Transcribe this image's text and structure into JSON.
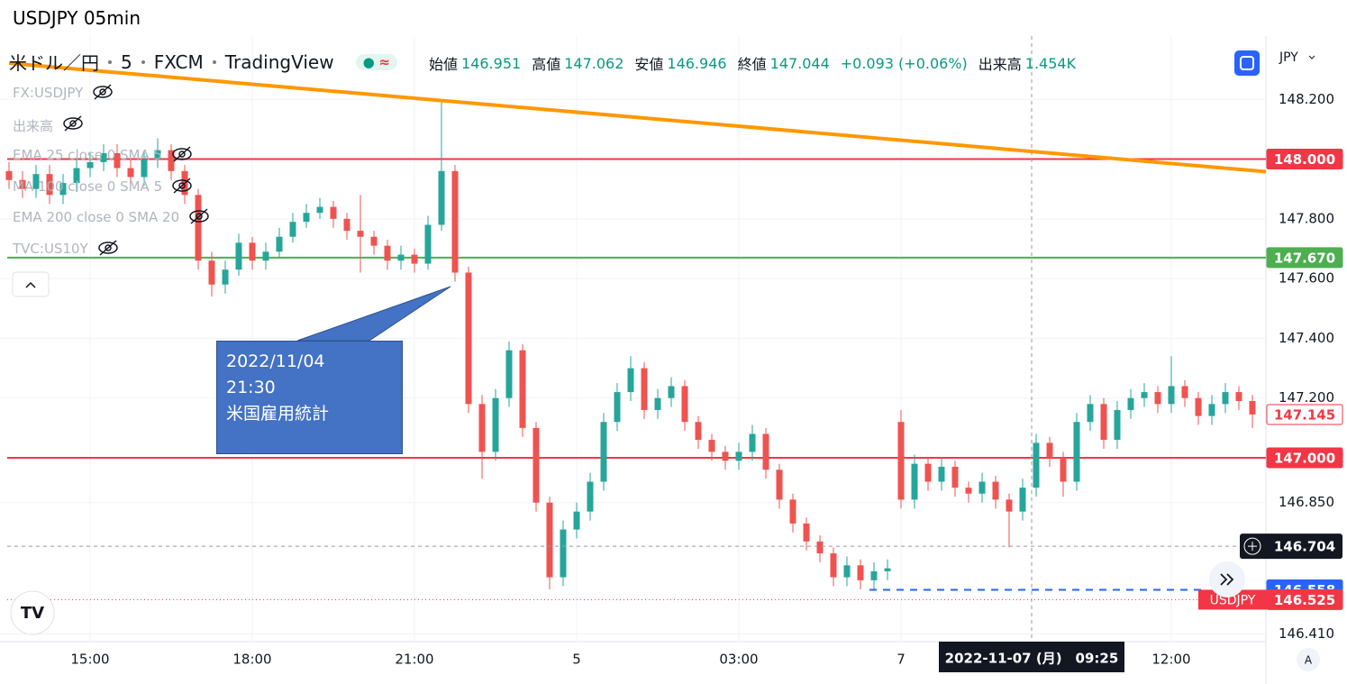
{
  "header": {
    "title": "USDJPY 05min"
  },
  "chart_data": {
    "type": "candlestick",
    "symbol_parts": [
      "米ドル／円",
      "5",
      "FXCM",
      "TradingView"
    ],
    "ohlc_legend": [
      {
        "label": "始値",
        "value": 146.951
      },
      {
        "label": "高値",
        "value": 147.062
      },
      {
        "label": "安値",
        "value": 146.946
      },
      {
        "label": "終値",
        "value": 147.044
      }
    ],
    "change": "+0.093 (+0.06%)",
    "volume_label": "出来高",
    "volume": "1.454K",
    "indicators": [
      "FX:USDJPY",
      "出来高",
      "EMA 25 close 0 SMA 5",
      "MA 100 close 0 SMA 5",
      "EMA 200 close 0 SMA 20",
      "TVC:US10Y"
    ],
    "currency": "JPY",
    "scale_button": "A",
    "annotation": [
      "2022/11/04",
      "21:30",
      "米国雇用統計"
    ],
    "x": [
      -18,
      -15,
      -12,
      -9,
      -6,
      -3,
      0,
      3,
      6,
      9,
      12,
      15,
      18,
      21,
      24,
      27,
      30,
      33,
      36,
      39,
      42,
      45,
      48,
      51,
      54,
      57,
      60,
      63,
      66,
      69,
      72,
      75,
      78,
      81,
      84,
      87,
      90,
      93,
      96,
      99,
      102,
      105,
      108,
      111,
      114,
      117,
      120,
      123,
      126,
      129,
      132,
      135,
      138,
      141,
      144,
      147,
      150,
      153,
      156,
      159,
      162,
      165,
      168,
      171,
      174,
      177,
      180,
      183,
      186,
      189,
      192,
      195,
      198,
      201,
      204,
      207,
      210,
      213,
      216,
      219,
      222,
      225,
      228,
      231,
      234,
      237,
      240,
      243,
      246,
      249,
      252,
      255,
      258
    ],
    "open": [
      147.96,
      147.93,
      147.9,
      147.95,
      147.88,
      147.92,
      147.97,
      147.99,
      148.02,
      147.97,
      147.94,
      148.0,
      148.03,
      147.96,
      147.88,
      147.66,
      147.58,
      147.63,
      147.72,
      147.66,
      147.69,
      147.74,
      147.79,
      147.82,
      147.84,
      147.8,
      147.76,
      147.74,
      147.71,
      147.66,
      147.68,
      147.65,
      147.78,
      147.96,
      147.62,
      147.18,
      147.02,
      147.2,
      147.36,
      147.1,
      146.85,
      146.6,
      146.76,
      146.82,
      146.92,
      147.12,
      147.22,
      147.3,
      147.16,
      147.2,
      147.24,
      147.12,
      147.06,
      147.02,
      146.99,
      147.02,
      147.08,
      146.96,
      146.86,
      146.78,
      146.72,
      146.68,
      146.6,
      146.64,
      146.59,
      146.62,
      147.12,
      146.86,
      146.98,
      146.92,
      146.97,
      146.9,
      146.88,
      146.92,
      146.86,
      146.82,
      146.9,
      147.05,
      147.0,
      146.92,
      147.12,
      147.18,
      147.06,
      147.16,
      147.2,
      147.22,
      147.18,
      147.24,
      147.2,
      147.14,
      147.18,
      147.22,
      147.19
    ],
    "high": [
      147.99,
      147.96,
      147.98,
      147.98,
      147.95,
      148.0,
      148.02,
      148.05,
      148.05,
      148.0,
      148.03,
      148.07,
      148.05,
      147.98,
      147.9,
      147.69,
      147.66,
      147.75,
      147.74,
      147.72,
      147.77,
      147.82,
      147.85,
      147.87,
      147.86,
      147.82,
      147.88,
      147.76,
      147.73,
      147.71,
      147.7,
      147.81,
      148.19,
      147.98,
      147.64,
      147.21,
      147.23,
      147.39,
      147.38,
      147.12,
      146.87,
      146.79,
      146.85,
      146.95,
      147.15,
      147.25,
      147.34,
      147.32,
      147.23,
      147.27,
      147.26,
      147.14,
      147.08,
      147.04,
      147.05,
      147.11,
      147.1,
      146.98,
      146.88,
      146.8,
      146.74,
      146.7,
      146.67,
      146.66,
      146.65,
      146.66,
      147.16,
      147.01,
      147.0,
      147.0,
      146.99,
      146.92,
      146.95,
      146.94,
      146.88,
      146.93,
      147.08,
      147.07,
      147.02,
      147.15,
      147.21,
      147.2,
      147.19,
      147.23,
      147.25,
      147.24,
      147.34,
      147.26,
      147.22,
      147.21,
      147.25,
      147.24,
      147.21
    ],
    "low": [
      147.9,
      147.87,
      147.87,
      147.85,
      147.85,
      147.89,
      147.94,
      147.96,
      147.94,
      147.91,
      147.91,
      147.97,
      147.93,
      147.85,
      147.63,
      147.54,
      147.55,
      147.61,
      147.63,
      147.63,
      147.67,
      147.72,
      147.77,
      147.8,
      147.77,
      147.73,
      147.62,
      147.68,
      147.63,
      147.63,
      147.62,
      147.63,
      147.76,
      147.59,
      147.15,
      146.93,
      146.99,
      147.17,
      147.07,
      146.82,
      146.56,
      146.57,
      146.73,
      146.79,
      146.89,
      147.09,
      147.19,
      147.13,
      147.13,
      147.17,
      147.09,
      147.03,
      146.99,
      146.96,
      146.96,
      146.99,
      146.93,
      146.83,
      146.75,
      146.69,
      146.65,
      146.57,
      146.57,
      146.56,
      146.56,
      146.59,
      146.83,
      146.83,
      146.89,
      146.89,
      146.87,
      146.85,
      146.85,
      146.83,
      146.7,
      146.79,
      146.87,
      146.97,
      146.87,
      146.89,
      147.09,
      147.03,
      147.03,
      147.13,
      147.17,
      147.15,
      147.15,
      147.17,
      147.11,
      147.11,
      147.15,
      147.16,
      147.1
    ],
    "close": [
      147.93,
      147.9,
      147.95,
      147.88,
      147.92,
      147.97,
      147.99,
      148.02,
      147.97,
      147.94,
      148.0,
      148.03,
      147.96,
      147.88,
      147.66,
      147.58,
      147.63,
      147.72,
      147.66,
      147.69,
      147.74,
      147.79,
      147.82,
      147.84,
      147.8,
      147.76,
      147.74,
      147.71,
      147.66,
      147.68,
      147.65,
      147.78,
      147.96,
      147.62,
      147.18,
      147.02,
      147.2,
      147.36,
      147.1,
      146.85,
      146.6,
      146.76,
      146.82,
      146.92,
      147.12,
      147.22,
      147.3,
      147.16,
      147.2,
      147.24,
      147.12,
      147.06,
      147.02,
      146.99,
      147.02,
      147.08,
      146.96,
      146.86,
      146.78,
      146.72,
      146.68,
      146.6,
      146.64,
      146.59,
      146.62,
      146.63,
      146.86,
      146.98,
      146.92,
      146.97,
      146.9,
      146.88,
      146.92,
      146.86,
      146.82,
      146.9,
      147.05,
      147.0,
      146.92,
      147.12,
      147.18,
      147.06,
      147.16,
      147.2,
      147.22,
      147.18,
      147.24,
      147.2,
      147.14,
      147.18,
      147.22,
      147.19,
      147.145
    ],
    "up_color": "#26a69a",
    "down_color": "#ef5350",
    "xlim": [
      -18,
      260
    ],
    "xticks": [
      {
        "value": 0,
        "label": "15:00"
      },
      {
        "value": 36,
        "label": "18:00"
      },
      {
        "value": 72,
        "label": "21:00"
      },
      {
        "value": 108,
        "label": "5"
      },
      {
        "value": 144,
        "label": "03:00"
      },
      {
        "value": 180,
        "label": "7"
      },
      {
        "value": 240,
        "label": "12:00"
      }
    ],
    "ylim": [
      146.383,
      148.412
    ],
    "yticks": [
      {
        "value": 148.2,
        "label": "148.200"
      },
      {
        "value": 147.8,
        "label": "147.800"
      },
      {
        "value": 147.6,
        "label": "147.600"
      },
      {
        "value": 147.4,
        "label": "147.400"
      },
      {
        "value": 147.2,
        "label": "147.200"
      },
      {
        "value": 146.85,
        "label": "146.850"
      },
      {
        "value": 146.41,
        "label": "146.410"
      }
    ],
    "grid": true,
    "hlines": [
      {
        "value": 148,
        "label": "148.000",
        "color": "#f23645"
      },
      {
        "value": 147.67,
        "label": "147.670",
        "color": "#4caf50"
      },
      {
        "value": 147,
        "label": "147.000",
        "color": "#f23645"
      }
    ],
    "trendline": {
      "x": [
        -18,
        261
      ],
      "values": [
        148.321,
        147.958
      ],
      "color": "#ff9800"
    },
    "last_price": {
      "value": 147.145,
      "label": "147.145",
      "color": "#f23645"
    },
    "alert_line": {
      "x": [
        173,
        248
      ],
      "value": 146.558,
      "label": "146.558",
      "color": "#2962ff"
    },
    "compare": {
      "name": "USDJPY",
      "value": 146.525,
      "label": "146.525",
      "color": "#f23645"
    },
    "crosshair": {
      "x": 209,
      "value": 146.704,
      "label": "146.704",
      "time_label": "2022-11-07 (月)　09:25"
    }
  }
}
